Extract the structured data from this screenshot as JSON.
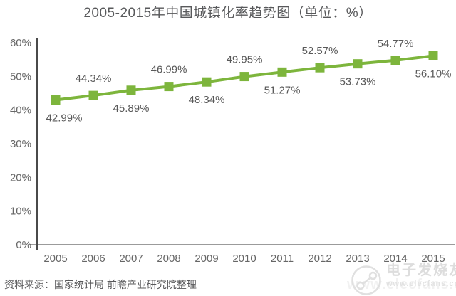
{
  "title": "2005-2015年中国城镇化率趋势图（单位：%）",
  "source_note": "资料来源：国家统计局 前瞻产业研究院整理",
  "watermark": {
    "brand": "电子发烧友",
    "url": "www.elecfans.com"
  },
  "colors": {
    "series": "#7db53c",
    "title_text": "#58595b",
    "axis_text": "#666666",
    "data_label_text": "#595959",
    "x_axis_line": "#9b9b9b",
    "y_axis_line": "#4a4a4a",
    "watermark_text": "#dddddd",
    "background": "#ffffff"
  },
  "chart_data": {
    "type": "line",
    "title": "2005-2015年中国城镇化率趋势图（单位：%）",
    "categories": [
      "2005",
      "2006",
      "2007",
      "2008",
      "2009",
      "2010",
      "2011",
      "2012",
      "2013",
      "2014",
      "2015"
    ],
    "series": [
      {
        "name": "中国城镇化率",
        "values": [
          42.99,
          44.34,
          45.89,
          46.99,
          48.34,
          49.95,
          51.27,
          52.57,
          53.73,
          54.77,
          56.1
        ]
      }
    ],
    "data_labels": [
      "42.99%",
      "44.34%",
      "45.89%",
      "46.99%",
      "48.34%",
      "49.95%",
      "51.27%",
      "52.57%",
      "53.73%",
      "54.77%",
      "56.10%"
    ],
    "y_ticks": [
      "0%",
      "10%",
      "20%",
      "30%",
      "40%",
      "50%",
      "60%"
    ],
    "xlabel": "",
    "ylabel": "",
    "ylim": [
      0,
      60
    ],
    "grid": false,
    "legend": null,
    "marker": "square",
    "label_placement": "alternating: even index below point, odd index above point"
  }
}
